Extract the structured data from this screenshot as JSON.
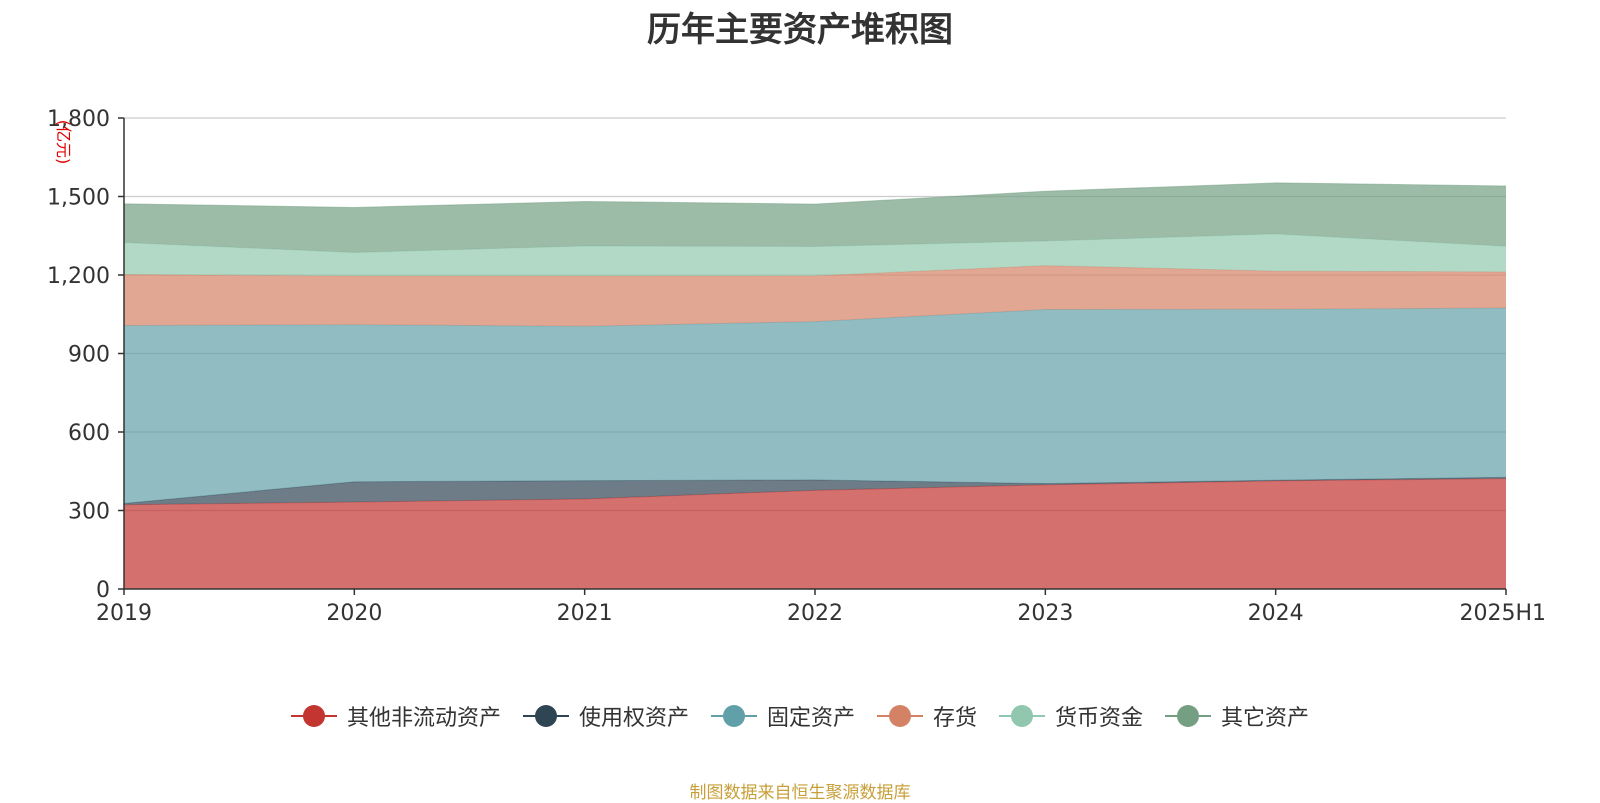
{
  "chart_data": {
    "type": "area",
    "stacked": true,
    "title": "历年主要资产堆积图",
    "ylabel": "(亿元)",
    "xlabel": "",
    "categories": [
      "2019",
      "2020",
      "2021",
      "2022",
      "2023",
      "2024",
      "2025H1"
    ],
    "ylim": [
      0,
      1800
    ],
    "yticks": [
      0,
      300,
      600,
      900,
      1200,
      1500,
      1800
    ],
    "ytick_labels": [
      "0",
      "300",
      "600",
      "900",
      "1,200",
      "1,500",
      "1,800"
    ],
    "grid": true,
    "legend_position": "bottom",
    "series": [
      {
        "name": "其他非流动资产",
        "color": "#c23531",
        "values": [
          322,
          332,
          344,
          377,
          398,
          413,
          422
        ]
      },
      {
        "name": "使用权资产",
        "color": "#2f4554",
        "values": [
          5,
          78,
          70,
          40,
          5,
          3,
          5
        ]
      },
      {
        "name": "固定资产",
        "color": "#61a0a8",
        "values": [
          680,
          600,
          590,
          605,
          665,
          653,
          647
        ]
      },
      {
        "name": "存货",
        "color": "#d48265",
        "values": [
          195,
          186,
          192,
          175,
          168,
          146,
          138
        ]
      },
      {
        "name": "货币资金",
        "color": "#91c7ae",
        "values": [
          122,
          90,
          115,
          112,
          94,
          142,
          98
        ]
      },
      {
        "name": "其它资产",
        "color": "#749f83",
        "values": [
          148,
          172,
          170,
          162,
          190,
          195,
          230
        ]
      }
    ]
  },
  "footer": {
    "source": "制图数据来自恒生聚源数据库"
  }
}
